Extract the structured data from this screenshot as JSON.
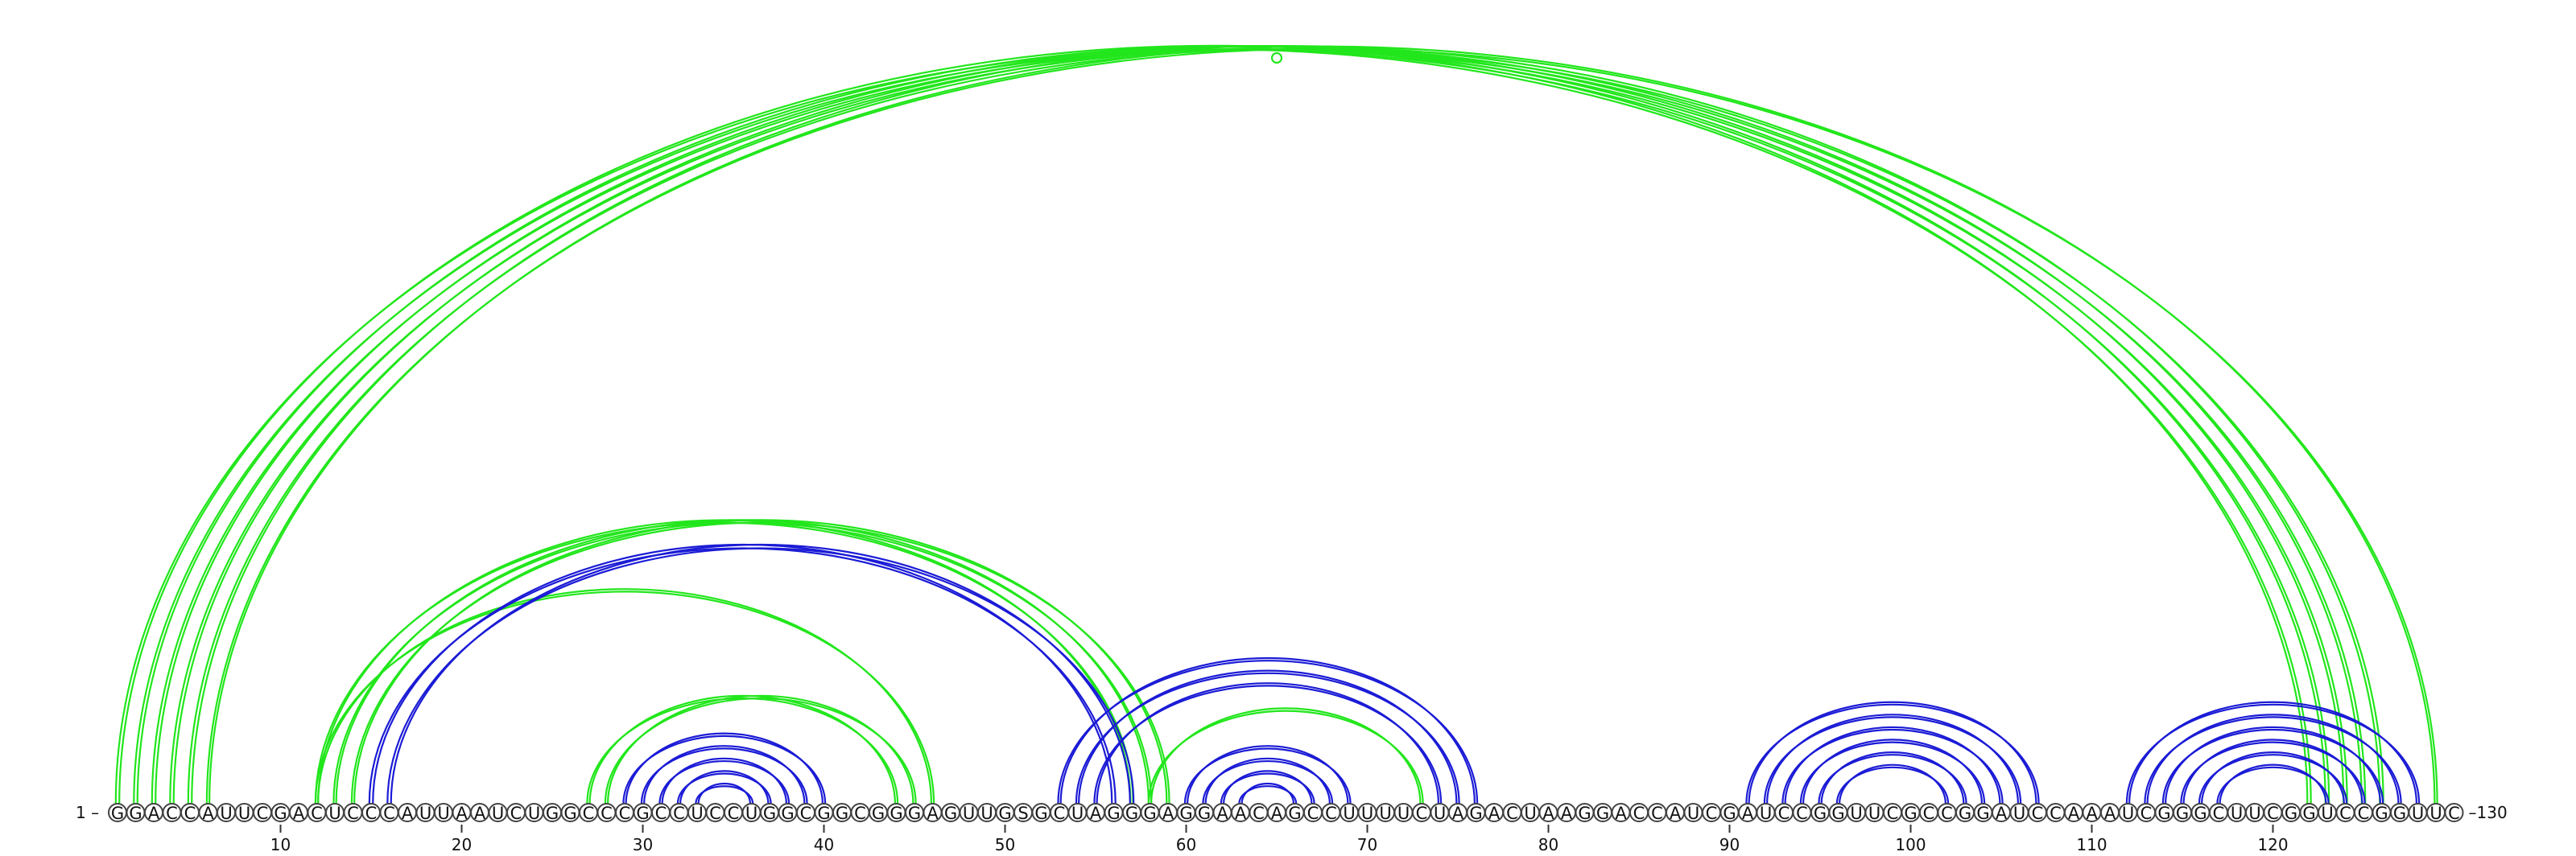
{
  "sequence": "GGACCAUUCGACUCCCAUUAAUCUGGCCCGCCUCCUGGCGGCGGGAGUUGSGCUAGGGAGGAACAGCCUUUUCUAGACUAAGGACCAUCGAUCCGGUUCGCCGGAUCCAAAUCGGGCUUCGGUCCGGUUC",
  "start_label": "1",
  "end_label": "130",
  "tick_labels": [
    "10",
    "20",
    "30",
    "40",
    "50",
    "60",
    "70",
    "80",
    "90",
    "100",
    "110",
    "120"
  ],
  "colors": {
    "green": "#22e61c",
    "blue": "#1b1bd6"
  },
  "arc_groups": [
    {
      "color": "green",
      "i": [
        1,
        2,
        3,
        4,
        5
      ],
      "j": [
        122,
        123,
        124,
        125,
        126
      ],
      "bold": true
    },
    {
      "color": "green",
      "i": [
        65
      ],
      "j": [
        65
      ],
      "dot": true
    },
    {
      "color": "green",
      "i": [
        6
      ],
      "j": [
        129
      ],
      "bold": false
    },
    {
      "color": "green",
      "i": [
        12,
        13,
        14
      ],
      "j": [
        57,
        58,
        59
      ]
    },
    {
      "color": "green",
      "i": [
        12
      ],
      "j": [
        46
      ]
    },
    {
      "color": "blue",
      "i": [
        15,
        16
      ],
      "j": [
        56,
        57
      ],
      "bold": true
    },
    {
      "color": "green",
      "i": [
        27,
        28
      ],
      "j": [
        44,
        45
      ]
    },
    {
      "color": "blue",
      "i": [
        29,
        30,
        31,
        32,
        33
      ],
      "j": [
        40,
        39,
        38,
        37,
        36
      ]
    },
    {
      "color": "blue",
      "i": [
        53,
        54,
        55
      ],
      "j": [
        76,
        75,
        74
      ]
    },
    {
      "color": "green",
      "i": [
        58
      ],
      "j": [
        73
      ]
    },
    {
      "color": "blue",
      "i": [
        60,
        61,
        62,
        63
      ],
      "j": [
        69,
        68,
        67,
        66
      ]
    },
    {
      "color": "blue",
      "i": [
        91,
        92,
        93,
        94,
        95,
        96
      ],
      "j": [
        107,
        106,
        105,
        104,
        103,
        102
      ]
    },
    {
      "color": "blue",
      "i": [
        112,
        113,
        114,
        115,
        116,
        117
      ],
      "j": [
        128,
        127,
        126,
        125,
        124,
        123
      ]
    }
  ]
}
